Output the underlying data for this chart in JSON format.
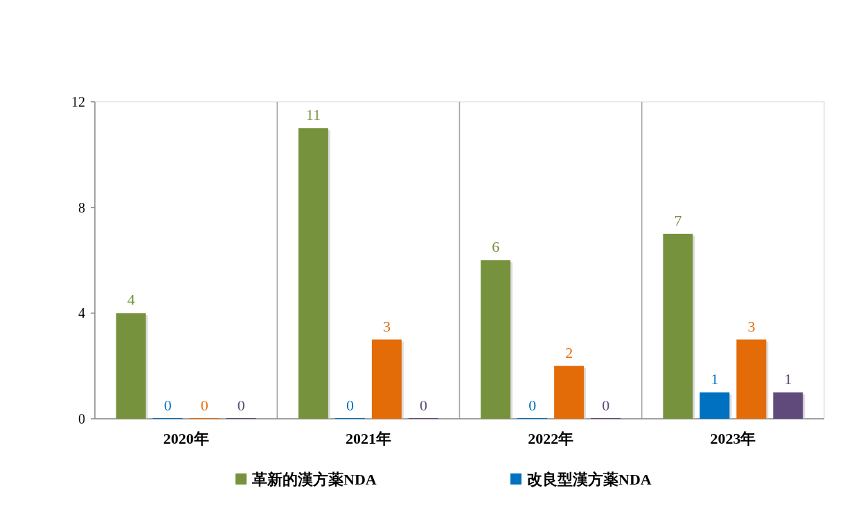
{
  "chart_data": {
    "type": "bar",
    "categories": [
      "2020年",
      "2021年",
      "2022年",
      "2023年"
    ],
    "series": [
      {
        "name": "革新的漢方薬NDA",
        "color": "#76923c",
        "values": [
          4,
          11,
          6,
          7
        ]
      },
      {
        "name": "改良型漢方薬NDA",
        "color": "#0070c0",
        "values": [
          0,
          0,
          0,
          1
        ]
      },
      {
        "color": "#e36c09",
        "values": [
          0,
          3,
          2,
          3
        ]
      },
      {
        "color": "#604a7b",
        "values": [
          0,
          0,
          0,
          1
        ]
      }
    ],
    "ylim": [
      0,
      12
    ],
    "yticks": [
      0,
      4,
      8,
      12
    ],
    "grid": "x",
    "data_labels": true,
    "legend": "bottom"
  }
}
